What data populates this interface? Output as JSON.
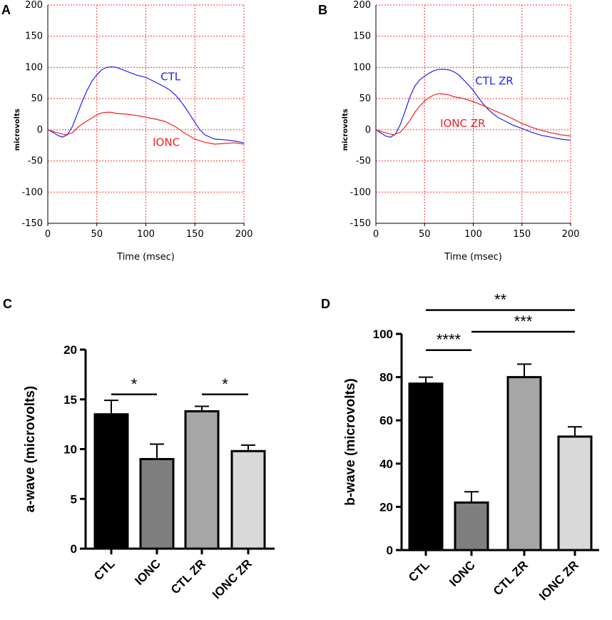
{
  "colors": {
    "grid": "#ff3333",
    "ctl_line": "#2222ee",
    "ionc_line": "#ee2222",
    "bar_colors": [
      "#000000",
      "#7f7f7f",
      "#a6a6a6",
      "#d9d9d9"
    ]
  },
  "chart_data": [
    {
      "panel": "A",
      "type": "line",
      "xlabel": "Time (msec)",
      "ylabel": "microvolts",
      "xlim": [
        0,
        200
      ],
      "ylim": [
        -150,
        200
      ],
      "xticks": [
        0,
        50,
        100,
        150,
        200
      ],
      "yticks": [
        -150,
        -100,
        -50,
        0,
        50,
        100,
        150,
        200
      ],
      "grid": true,
      "series": [
        {
          "name": "CTL",
          "color": "#2222ee",
          "label_at": [
            115,
            85
          ],
          "x": [
            0,
            5,
            10,
            15,
            20,
            25,
            30,
            35,
            40,
            45,
            50,
            55,
            60,
            65,
            70,
            75,
            80,
            85,
            90,
            95,
            100,
            105,
            110,
            115,
            120,
            125,
            130,
            135,
            140,
            145,
            150,
            155,
            160,
            170,
            180,
            190,
            200
          ],
          "y": [
            0,
            -4,
            -9,
            -12,
            -8,
            5,
            25,
            45,
            63,
            78,
            88,
            96,
            100,
            101,
            100,
            97,
            94,
            91,
            88,
            86,
            84,
            80,
            76,
            72,
            68,
            63,
            56,
            47,
            36,
            24,
            12,
            0,
            -8,
            -15,
            -16,
            -18,
            -21
          ]
        },
        {
          "name": "IONC",
          "color": "#ee2222",
          "label_at": [
            107,
            -20
          ],
          "x": [
            0,
            10,
            18,
            25,
            30,
            35,
            40,
            45,
            50,
            55,
            60,
            65,
            70,
            80,
            90,
            100,
            110,
            120,
            130,
            140,
            150,
            160,
            170,
            180,
            190,
            200
          ],
          "y": [
            0,
            -5,
            -8,
            -5,
            3,
            9,
            14,
            19,
            24,
            27,
            28,
            28,
            26,
            25,
            23,
            20,
            17,
            13,
            5,
            -6,
            -15,
            -20,
            -23,
            -22,
            -21,
            -23
          ]
        }
      ]
    },
    {
      "panel": "B",
      "type": "line",
      "xlabel": "Time (msec)",
      "ylabel": "microvolts",
      "xlim": [
        0,
        200
      ],
      "ylim": [
        -150,
        200
      ],
      "xticks": [
        0,
        50,
        100,
        150,
        200
      ],
      "yticks": [
        -150,
        -100,
        -50,
        0,
        50,
        100,
        150,
        200
      ],
      "grid": true,
      "series": [
        {
          "name": "CTL ZR",
          "color": "#2222ee",
          "label_at": [
            102,
            78
          ],
          "x": [
            0,
            5,
            10,
            15,
            20,
            25,
            30,
            35,
            40,
            45,
            50,
            55,
            60,
            65,
            70,
            75,
            80,
            85,
            90,
            95,
            100,
            105,
            110,
            115,
            120,
            125,
            130,
            135,
            140,
            150,
            160,
            170,
            180,
            190,
            200
          ],
          "y": [
            0,
            -5,
            -10,
            -12,
            -7,
            8,
            30,
            53,
            70,
            80,
            86,
            91,
            95,
            97,
            97,
            96,
            93,
            88,
            80,
            72,
            63,
            52,
            42,
            33,
            26,
            20,
            16,
            12,
            8,
            2,
            -4,
            -9,
            -12,
            -15,
            -17
          ]
        },
        {
          "name": "IONC ZR",
          "color": "#ee2222",
          "label_at": [
            66,
            10
          ],
          "x": [
            0,
            10,
            18,
            25,
            30,
            35,
            40,
            45,
            50,
            55,
            60,
            65,
            70,
            75,
            80,
            90,
            100,
            110,
            120,
            130,
            140,
            150,
            160,
            170,
            180,
            190,
            200
          ],
          "y": [
            0,
            -5,
            -8,
            -4,
            5,
            15,
            28,
            38,
            46,
            52,
            56,
            58,
            57,
            56,
            53,
            50,
            45,
            39,
            32,
            25,
            18,
            10,
            4,
            -1,
            -5,
            -8,
            -10
          ]
        }
      ]
    },
    {
      "panel": "C",
      "type": "bar",
      "ylabel": "a-wave (microvolts)",
      "ylim": [
        0,
        20
      ],
      "yticks": [
        0,
        5,
        10,
        15,
        20
      ],
      "categories": [
        "CTL",
        "IONC",
        "CTL ZR",
        "IONC ZR"
      ],
      "values": [
        13.5,
        9.0,
        13.8,
        9.8
      ],
      "errors": [
        1.4,
        1.5,
        0.5,
        0.6
      ],
      "significance": [
        {
          "from": 0,
          "to": 1,
          "label": "*",
          "y": 15.5
        },
        {
          "from": 2,
          "to": 3,
          "label": "*",
          "y": 15.5
        }
      ]
    },
    {
      "panel": "D",
      "type": "bar",
      "ylabel": "b-wave (microvolts)",
      "ylim": [
        0,
        100
      ],
      "yticks": [
        0,
        20,
        40,
        60,
        80,
        100
      ],
      "categories": [
        "CTL",
        "IONC",
        "CTL ZR",
        "IONC ZR"
      ],
      "values": [
        77,
        22,
        80,
        52.5
      ],
      "errors": [
        3,
        5,
        6,
        4.5
      ],
      "significance": [
        {
          "from": 0,
          "to": 3,
          "label": "**",
          "y": 111
        },
        {
          "from": 1,
          "to": 3,
          "label": "***",
          "y": 101
        },
        {
          "from": 0,
          "to": 1,
          "label": "****",
          "y": 92.5
        }
      ]
    }
  ]
}
